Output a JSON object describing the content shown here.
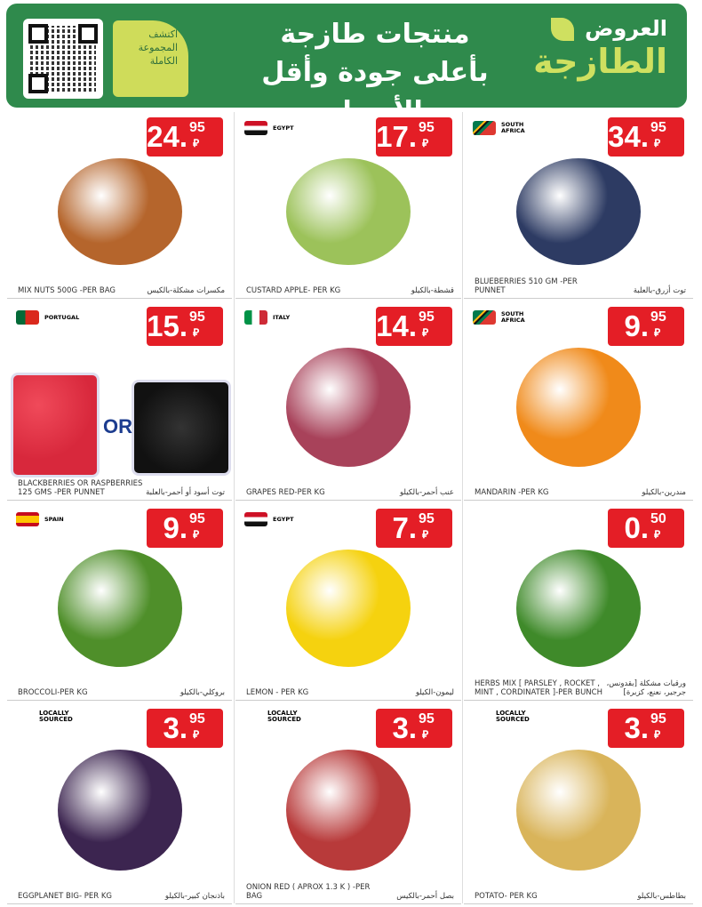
{
  "header": {
    "brand_line1": "العروض",
    "brand_line2": "الطازجة",
    "headline_line1": "منتجات طازجة",
    "headline_line2": "بأعلى جودة وأقل الأسعار",
    "explore_text": "اكتشف المجموعة الكاملة",
    "colors": {
      "green": "#2f8a4c",
      "lime": "#cfdc5a",
      "price_red": "#e41e26"
    }
  },
  "products": [
    {
      "name_en": "MIX NUTS  500G -PER BAG",
      "name_ar": "مكسرات مشكلة-بالكيس",
      "price_int": "24.",
      "price_dec": "95",
      "origin": "",
      "image": {
        "icon": "mixed-nuts-bowl",
        "color": "#b5652c"
      }
    },
    {
      "name_en": "CUSTARD APPLE- PER KG",
      "name_ar": "قشطة-بالكيلو",
      "price_int": "17.",
      "price_dec": "95",
      "origin": "EGYPT",
      "image": {
        "icon": "custard-apple",
        "color": "#9cc25a"
      }
    },
    {
      "name_en": "BLUEBERRIES 510 GM -PER PUNNET",
      "name_ar": "توت أزرق-بالعلبة",
      "price_int": "34.",
      "price_dec": "95",
      "origin": "SOUTH AFRICA",
      "image": {
        "icon": "blueberries-punnet",
        "color": "#2d3b63"
      }
    },
    {
      "name_en": "BLACKBERRIES OR RASPBERRIES 125 GMS -PER PUNNET",
      "name_ar": "توت أسود أو أحمر-بالعلبة",
      "price_int": "15.",
      "price_dec": "95",
      "origin": "PORTUGAL",
      "or_label": "OR",
      "image": {
        "icon": "raspberries-blackberries",
        "color": "#d8283c"
      }
    },
    {
      "name_en": "GRAPES RED-PER KG",
      "name_ar": "عنب أحمر-بالكيلو",
      "price_int": "14.",
      "price_dec": "95",
      "origin": "ITALY",
      "image": {
        "icon": "red-grapes",
        "color": "#a8425a"
      }
    },
    {
      "name_en": "MANDARIN -PER KG",
      "name_ar": "مندرين-بالكيلو",
      "price_int": "9.",
      "price_dec": "95",
      "origin": "SOUTH AFRICA",
      "image": {
        "icon": "mandarin",
        "color": "#f08a1a"
      }
    },
    {
      "name_en": "BROCCOLI-PER KG",
      "name_ar": "بروكلي-بالكيلو",
      "price_int": "9.",
      "price_dec": "95",
      "origin": "SPAIN",
      "image": {
        "icon": "broccoli",
        "color": "#4f8f2a"
      }
    },
    {
      "name_en": "LEMON - PER KG",
      "name_ar": "ليمون-الكيلو",
      "price_int": "7.",
      "price_dec": "95",
      "origin": "EGYPT",
      "image": {
        "icon": "lemon",
        "color": "#f5d20f"
      }
    },
    {
      "name_en": "HERBS MIX [ PARSLEY , ROCKET , MINT , CORDINATER ]-PER BUNCH",
      "name_ar": "ورقيات مشكلة [بقدونس، جرجير، نعنع، كزبرة]",
      "price_int": "0.",
      "price_dec": "50",
      "origin": "",
      "image": {
        "icon": "herbs-bunch",
        "color": "#3f8a2a"
      }
    },
    {
      "name_en": "EGGPLANET BIG- PER KG",
      "name_ar": "باذنجان كبير-بالكيلو",
      "price_int": "3.",
      "price_dec": "95",
      "origin": "",
      "local": "LOCALLY SOURCED",
      "image": {
        "icon": "eggplant",
        "color": "#3c2550"
      }
    },
    {
      "name_en": "ONION RED ( APROX 1.3 K ) -PER BAG",
      "name_ar": "بصل أحمر-بالكيس",
      "price_int": "3.",
      "price_dec": "95",
      "origin": "",
      "local": "LOCALLY SOURCED",
      "image": {
        "icon": "red-onion-bag",
        "color": "#b83a3a"
      }
    },
    {
      "name_en": "POTATO- PER KG",
      "name_ar": "بطاطس-بالكيلو",
      "price_int": "3.",
      "price_dec": "95",
      "origin": "",
      "local": "LOCALLY SOURCED",
      "image": {
        "icon": "potatoes",
        "color": "#d9b45a"
      }
    }
  ],
  "currency_icon": "saudi-riyal-icon"
}
